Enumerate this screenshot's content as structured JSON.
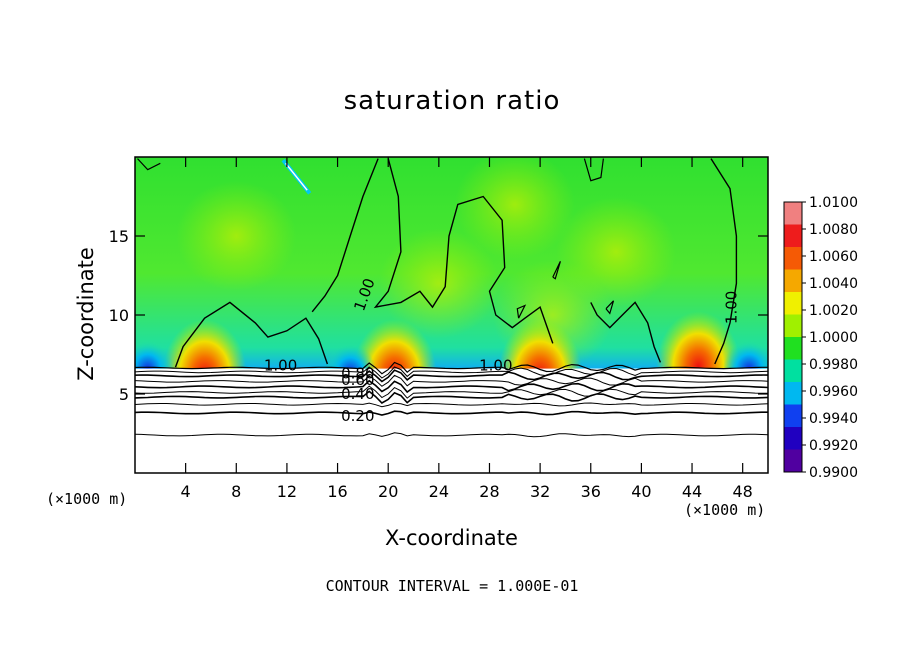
{
  "chart_data": {
    "type": "heatmap",
    "title": "saturation ratio",
    "xlabel": "X-coordinate",
    "ylabel": "Z-coordinate",
    "x_unit_left": "(×1000 m)",
    "x_unit_right": "(×1000 m)",
    "footnote": "CONTOUR INTERVAL = 1.000E-01",
    "xlim": [
      0,
      50
    ],
    "ylim": [
      0,
      20
    ],
    "x_ticks": [
      "4",
      "8",
      "12",
      "16",
      "20",
      "24",
      "28",
      "32",
      "36",
      "40",
      "44",
      "48"
    ],
    "x_tick_values": [
      4,
      8,
      12,
      16,
      20,
      24,
      28,
      32,
      36,
      40,
      44,
      48
    ],
    "y_ticks": [
      "5",
      "10",
      "15"
    ],
    "y_tick_values": [
      5,
      10,
      15
    ],
    "colorbar": {
      "labels": [
        "1.0100",
        "1.0080",
        "1.0060",
        "1.0040",
        "1.0020",
        "1.0000",
        "0.9980",
        "0.9960",
        "0.9940",
        "0.9920",
        "0.9900"
      ],
      "values": [
        1.01,
        1.008,
        1.006,
        1.004,
        1.002,
        1.0,
        0.998,
        0.996,
        0.994,
        0.992,
        0.99
      ],
      "colors": [
        "#f08080",
        "#ee1c1c",
        "#f55a05",
        "#f5a800",
        "#f0f000",
        "#a0f000",
        "#20e020",
        "#00e0a0",
        "#00b8f0",
        "#1040f0",
        "#2000c0",
        "#5000a0"
      ]
    },
    "contour_labels": [
      {
        "text": "1.00",
        "x": 11.5,
        "z": 6.8
      },
      {
        "text": "1.00",
        "x": 18.5,
        "z": 11.5
      },
      {
        "text": "1.00",
        "x": 28.5,
        "z": 6.8
      },
      {
        "text": "1.00",
        "x": 47.5,
        "z": 10.8
      },
      {
        "text": "0.80",
        "x": 17.6,
        "z": 6.3
      },
      {
        "text": "0.60",
        "x": 17.6,
        "z": 5.9
      },
      {
        "text": "0.40",
        "x": 17.6,
        "z": 5.0
      },
      {
        "text": "0.20",
        "x": 17.6,
        "z": 3.6
      }
    ],
    "subsaturated_levels": [
      {
        "level": 0.9,
        "z": 6.4
      },
      {
        "level": 0.8,
        "z": 6.15
      },
      {
        "level": 0.7,
        "z": 5.8
      },
      {
        "level": 0.6,
        "z": 5.45
      },
      {
        "level": 0.5,
        "z": 5.1
      },
      {
        "level": 0.4,
        "z": 4.8
      },
      {
        "level": 0.3,
        "z": 4.35
      },
      {
        "level": 0.2,
        "z": 3.8
      },
      {
        "level": 0.1,
        "z": 2.4
      }
    ],
    "boundary_layer_top_z": 6.6,
    "warm_patches": [
      {
        "x": 5.5,
        "z": 7.0,
        "value": 1.008
      },
      {
        "x": 20.5,
        "z": 7.0,
        "value": 1.004
      },
      {
        "x": 32.0,
        "z": 7.0,
        "value": 1.006
      },
      {
        "x": 44.5,
        "z": 7.5,
        "value": 1.008
      }
    ],
    "cold_patches": [
      {
        "x": 1.0,
        "z": 7.5,
        "value": 0.994
      },
      {
        "x": 17.0,
        "z": 7.3,
        "value": 0.994
      },
      {
        "x": 48.5,
        "z": 7.5,
        "value": 0.994
      }
    ]
  }
}
